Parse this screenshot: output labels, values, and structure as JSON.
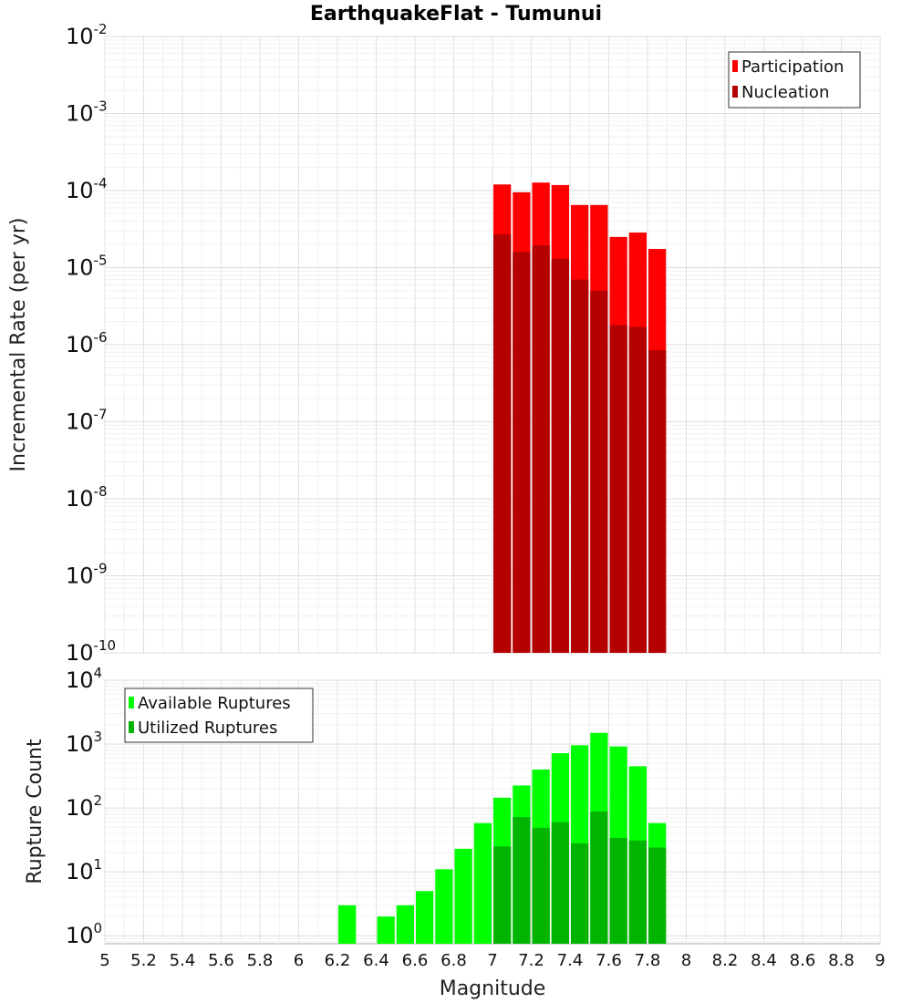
{
  "title": "EarthquakeFlat - Tumunui",
  "colors": {
    "participation": "#ff0000",
    "nucleation": "#b40000",
    "available": "#00ff00",
    "utilized": "#00b400",
    "grid": "#e8e8e8",
    "frame": "#aaaaaa"
  },
  "chart_data": [
    {
      "type": "bar",
      "panel": "top",
      "scale": "log",
      "ylabel": "Incremental Rate (per yr)",
      "xlim": [
        5,
        9
      ],
      "ylim": [
        1e-10,
        0.01
      ],
      "y_ticks": [
        {
          "base": "10",
          "exp": "-2",
          "value": 0.01
        },
        {
          "base": "10",
          "exp": "-3",
          "value": 0.001
        },
        {
          "base": "10",
          "exp": "-4",
          "value": 0.0001
        },
        {
          "base": "10",
          "exp": "-5",
          "value": 1e-05
        },
        {
          "base": "10",
          "exp": "-6",
          "value": 1e-06
        },
        {
          "base": "10",
          "exp": "-7",
          "value": 1e-07
        },
        {
          "base": "10",
          "exp": "-8",
          "value": 1e-08
        },
        {
          "base": "10",
          "exp": "-9",
          "value": 1e-09
        },
        {
          "base": "10",
          "exp": "-10",
          "value": 1e-10
        }
      ],
      "legend": {
        "position": "top-right",
        "entries": [
          "Participation",
          "Nucleation"
        ]
      },
      "bin_width": 0.1,
      "x": [
        7.05,
        7.15,
        7.25,
        7.35,
        7.45,
        7.55,
        7.65,
        7.75,
        7.85
      ],
      "series": [
        {
          "name": "Participation",
          "values": [
            0.00012,
            9.5e-05,
            0.000127,
            0.000118,
            6.5e-05,
            6.5e-05,
            2.5e-05,
            2.85e-05,
            1.75e-05
          ]
        },
        {
          "name": "Nucleation",
          "values": [
            2.7e-05,
            1.6e-05,
            1.95e-05,
            1.3e-05,
            7e-06,
            5e-06,
            1.8e-06,
            1.7e-06,
            8.5e-07
          ]
        }
      ]
    },
    {
      "type": "bar",
      "panel": "bottom",
      "scale": "log",
      "ylabel": "Rupture Count",
      "xlabel": "Magnitude",
      "xlim": [
        5,
        9
      ],
      "ylim": [
        0.75,
        10000
      ],
      "x_ticks": [
        "5",
        "5.2",
        "5.4",
        "5.6",
        "5.8",
        "6",
        "6.2",
        "6.4",
        "6.6",
        "6.8",
        "7",
        "7.2",
        "7.4",
        "7.6",
        "7.8",
        "8",
        "8.2",
        "8.4",
        "8.6",
        "8.8",
        "9"
      ],
      "y_ticks": [
        {
          "base": "10",
          "exp": "4",
          "value": 10000
        },
        {
          "base": "10",
          "exp": "3",
          "value": 1000
        },
        {
          "base": "10",
          "exp": "2",
          "value": 100
        },
        {
          "base": "10",
          "exp": "1",
          "value": 10
        },
        {
          "base": "10",
          "exp": "0",
          "value": 1
        }
      ],
      "legend": {
        "position": "top-left",
        "entries": [
          "Available Ruptures",
          "Utilized Ruptures"
        ]
      },
      "bin_width": 0.1,
      "x": [
        6.25,
        6.35,
        6.45,
        6.55,
        6.65,
        6.75,
        6.85,
        6.95,
        7.05,
        7.15,
        7.25,
        7.35,
        7.45,
        7.55,
        7.65,
        7.75,
        7.85
      ],
      "series": [
        {
          "name": "Available Ruptures",
          "values": [
            3,
            0,
            2,
            3,
            5,
            11,
            23,
            58,
            145,
            225,
            400,
            720,
            960,
            1500,
            920,
            450,
            58
          ]
        },
        {
          "name": "Utilized Ruptures",
          "values": [
            0,
            0,
            0,
            0,
            0,
            0,
            0,
            0,
            25,
            72,
            49,
            60,
            28,
            88,
            34,
            31,
            24
          ]
        }
      ]
    }
  ]
}
